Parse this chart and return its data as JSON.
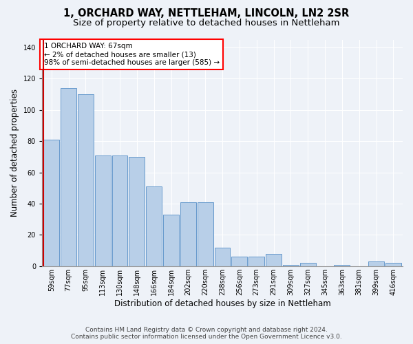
{
  "title": "1, ORCHARD WAY, NETTLEHAM, LINCOLN, LN2 2SR",
  "subtitle": "Size of property relative to detached houses in Nettleham",
  "xlabel": "Distribution of detached houses by size in Nettleham",
  "ylabel": "Number of detached properties",
  "categories": [
    "59sqm",
    "77sqm",
    "95sqm",
    "113sqm",
    "130sqm",
    "148sqm",
    "166sqm",
    "184sqm",
    "202sqm",
    "220sqm",
    "238sqm",
    "256sqm",
    "273sqm",
    "291sqm",
    "309sqm",
    "327sqm",
    "345sqm",
    "363sqm",
    "381sqm",
    "399sqm",
    "416sqm"
  ],
  "values": [
    81,
    114,
    110,
    71,
    71,
    70,
    51,
    33,
    41,
    41,
    12,
    6,
    6,
    8,
    1,
    2,
    0,
    1,
    0,
    3,
    2
  ],
  "bar_color": "#b8cfe8",
  "bar_edge_color": "#6699cc",
  "highlight_color": "#cc0000",
  "annotation_title": "1 ORCHARD WAY: 67sqm",
  "annotation_line1": "← 2% of detached houses are smaller (13)",
  "annotation_line2": "98% of semi-detached houses are larger (585) →",
  "ylim": [
    0,
    145
  ],
  "yticks": [
    0,
    20,
    40,
    60,
    80,
    100,
    120,
    140
  ],
  "footer_line1": "Contains HM Land Registry data © Crown copyright and database right 2024.",
  "footer_line2": "Contains public sector information licensed under the Open Government Licence v3.0.",
  "bg_color": "#eef2f8",
  "grid_color": "#ffffff",
  "title_fontsize": 10.5,
  "subtitle_fontsize": 9.5,
  "axis_label_fontsize": 8.5,
  "tick_fontsize": 7,
  "annotation_fontsize": 7.5,
  "footer_fontsize": 6.5
}
